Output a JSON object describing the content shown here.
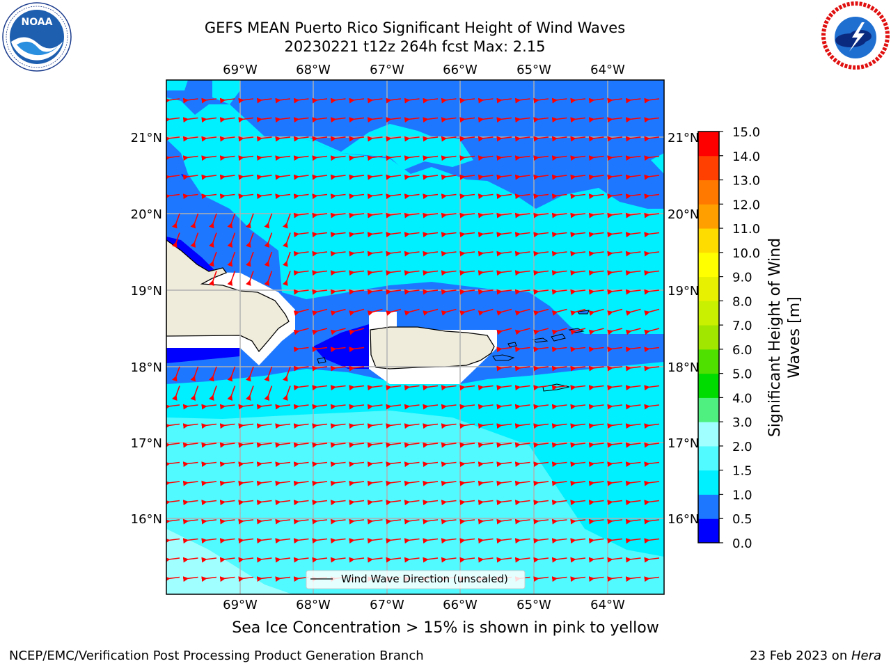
{
  "header": {
    "title_line1": "GEFS MEAN Puerto Rico Significant Height of Wind Waves",
    "title_line2": "20230221 t12z 264h fcst   Max: 2.15"
  },
  "logos": {
    "left": {
      "name": "NOAA",
      "ring_text": "NATIONAL OCEANIC AND ATMOSPHERIC ADMINISTRATION · U.S. DEPARTMENT OF COMMERCE"
    },
    "right": {
      "name": "NATIONAL WEATHER SERVICE"
    }
  },
  "map": {
    "lon_labels": [
      "69°W",
      "68°W",
      "67°W",
      "66°W",
      "65°W",
      "64°W"
    ],
    "lat_labels": [
      "21°N",
      "20°N",
      "19°N",
      "18°N",
      "17°N",
      "16°N"
    ],
    "legend": {
      "label": "Wind Wave Direction (unscaled)"
    },
    "arrow_color": "#ff0000",
    "land_color": "#efecdc",
    "grid_color": "#b0b0b0"
  },
  "colorbar": {
    "label_line1": "Significant Height of Wind",
    "label_line2": "Waves [m]",
    "ticks": [
      "0.0",
      "0.5",
      "1.0",
      "1.5",
      "2.0",
      "3.0",
      "4.0",
      "5.0",
      "6.0",
      "7.0",
      "8.0",
      "9.0",
      "10.0",
      "11.0",
      "12.0",
      "13.0",
      "14.0",
      "15.0"
    ],
    "colors": [
      "#0000ff",
      "#1e78ff",
      "#00f0ff",
      "#50faff",
      "#a0ffff",
      "#50f080",
      "#00dc00",
      "#50e000",
      "#a0e600",
      "#c8f000",
      "#e6f000",
      "#ffff00",
      "#ffdc00",
      "#ffa000",
      "#ff7800",
      "#ff4000",
      "#ff0000"
    ]
  },
  "subcaption": "Sea Ice Concentration > 15% is shown in pink to yellow",
  "footer": {
    "left": "NCEP/EMC/Verification Post Processing Product Generation Branch",
    "right_prefix": "23 Feb 2023 on ",
    "right_host": "Hera"
  }
}
